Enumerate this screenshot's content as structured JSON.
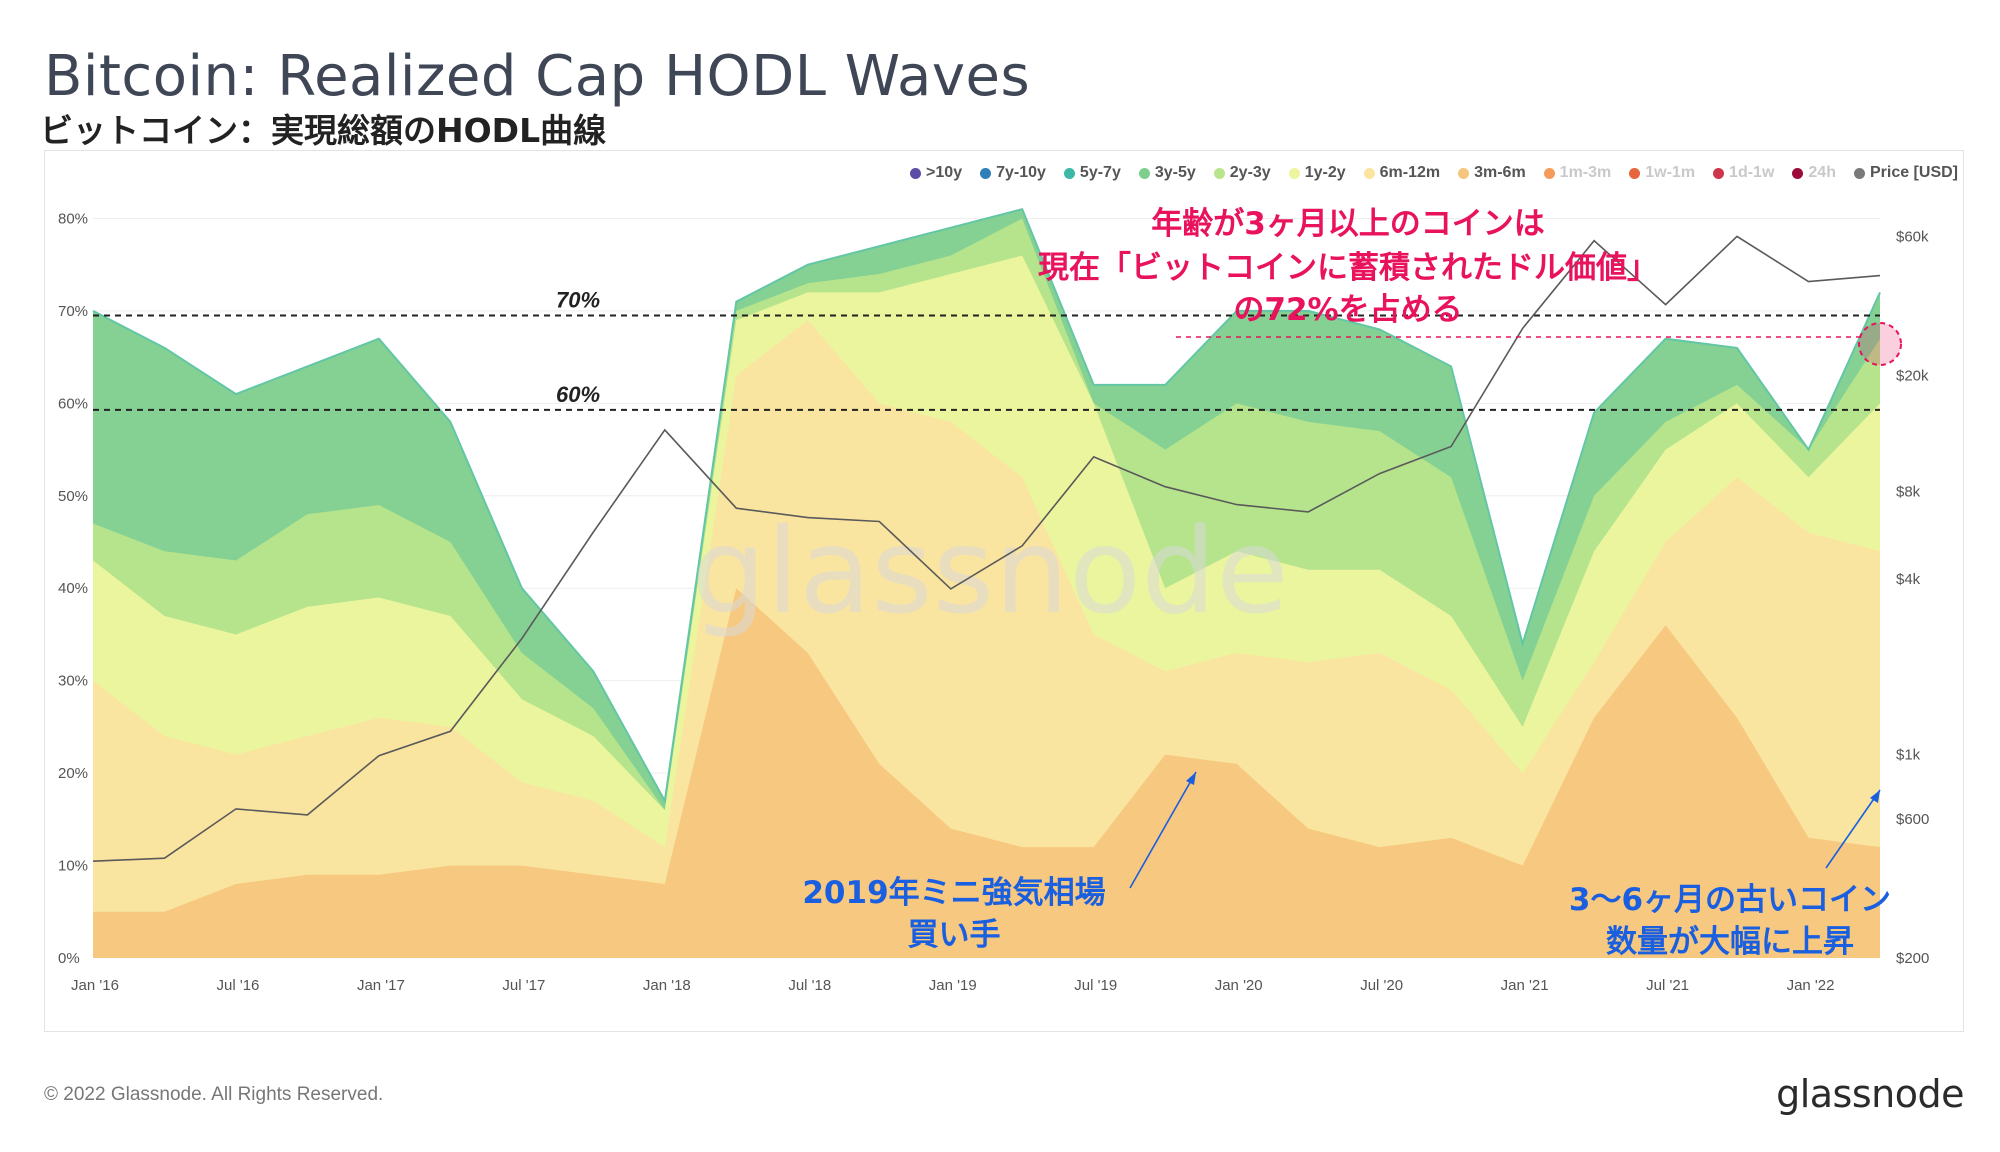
{
  "title": "Bitcoin: Realized Cap HODL Waves",
  "subtitle": "ビットコイン：実現総額のHODL曲線",
  "copyright": "© 2022 Glassnode. All Rights Reserved.",
  "brand": "glassnode",
  "watermark": "glassnode",
  "legend": [
    {
      "label": ">10y",
      "color": "#5b4da6",
      "muted": false
    },
    {
      "label": "7y-10y",
      "color": "#2f7fb8",
      "muted": false
    },
    {
      "label": "5y-7y",
      "color": "#3bb8a6",
      "muted": false
    },
    {
      "label": "3y-5y",
      "color": "#7ecf8e",
      "muted": false
    },
    {
      "label": "2y-3y",
      "color": "#b8e58c",
      "muted": false
    },
    {
      "label": "1y-2y",
      "color": "#eef59e",
      "muted": false
    },
    {
      "label": "6m-12m",
      "color": "#fbe4a0",
      "muted": false
    },
    {
      "label": "3m-6m",
      "color": "#f7c67d",
      "muted": false
    },
    {
      "label": "1m-3m",
      "color": "#f49c5c",
      "muted": true
    },
    {
      "label": "1w-1m",
      "color": "#e8643f",
      "muted": true
    },
    {
      "label": "1d-1w",
      "color": "#d0364b",
      "muted": true
    },
    {
      "label": "24h",
      "color": "#9c0a3a",
      "muted": true
    },
    {
      "label": "Price [USD]",
      "color": "#7a7a7a",
      "muted": false
    }
  ],
  "annotations": {
    "top_line1": "年齢が3ヶ月以上のコインは",
    "top_line2": "現在「ビットコインに蓄積されたドル価値」",
    "top_line3": "の72%を占める",
    "left_line1": "2019年ミニ強気相場",
    "left_line2": "買い手",
    "right_line1": "3〜6ヶ月の古いコイン",
    "right_line2": "数量が大幅に上昇",
    "ref70": "70%",
    "ref60": "60%",
    "highlight_color": "#e8125d",
    "callout_color": "#1a5fe0"
  },
  "chart_data": {
    "type": "area",
    "x": [
      "2016-01",
      "2016-04",
      "2016-07",
      "2016-10",
      "2017-01",
      "2017-04",
      "2017-07",
      "2017-10",
      "2018-01",
      "2018-04",
      "2018-07",
      "2018-10",
      "2019-01",
      "2019-04",
      "2019-07",
      "2019-10",
      "2020-01",
      "2020-04",
      "2020-07",
      "2020-10",
      "2021-01",
      "2021-04",
      "2021-07",
      "2021-10",
      "2022-01",
      "2022-03"
    ],
    "x_ticks": [
      "Jan '16",
      "Jul '16",
      "Jan '17",
      "Jul '17",
      "Jan '18",
      "Jul '18",
      "Jan '19",
      "Jul '19",
      "Jan '20",
      "Jul '20",
      "Jan '21",
      "Jul '21",
      "Jan '22"
    ],
    "y_left_ticks": [
      "0%",
      "10%",
      "20%",
      "30%",
      "40%",
      "50%",
      "60%",
      "70%",
      "80%"
    ],
    "y_right_ticks": [
      "$200",
      "$600",
      "$1k",
      "$4k",
      "$8k",
      "$20k",
      "$60k"
    ],
    "ylim": [
      0,
      82
    ],
    "reference_lines": [
      70,
      60
    ],
    "series": [
      {
        "name": "3m-6m",
        "values": [
          5,
          5,
          8,
          9,
          9,
          10,
          10,
          9,
          8,
          40,
          33,
          21,
          14,
          12,
          12,
          22,
          21,
          14,
          12,
          13,
          10,
          26,
          36,
          26,
          13,
          12
        ]
      },
      {
        "name": "6m-12m",
        "values": [
          30,
          24,
          22,
          24,
          26,
          25,
          19,
          17,
          12,
          63,
          69,
          60,
          58,
          52,
          35,
          31,
          33,
          32,
          33,
          29,
          20,
          32,
          45,
          52,
          46,
          44
        ]
      },
      {
        "name": "1y-2y",
        "values": [
          43,
          37,
          35,
          38,
          39,
          37,
          28,
          24,
          16,
          69,
          72,
          72,
          74,
          76,
          60,
          40,
          44,
          42,
          42,
          37,
          25,
          44,
          55,
          60,
          52,
          60
        ]
      },
      {
        "name": "2y-3y",
        "values": [
          47,
          44,
          43,
          48,
          49,
          45,
          33,
          27,
          16,
          70,
          73,
          74,
          76,
          80,
          60,
          55,
          60,
          58,
          57,
          52,
          30,
          50,
          58,
          62,
          55,
          67
        ]
      },
      {
        "name": "3y-5y",
        "values": [
          70,
          66,
          61,
          64,
          67,
          58,
          40,
          31,
          17,
          71,
          75,
          77,
          79,
          81,
          62,
          62,
          70,
          70,
          68,
          64,
          34,
          59,
          67,
          66,
          55,
          72
        ]
      }
    ],
    "price_usd": [
      430,
      440,
      650,
      620,
      990,
      1200,
      2500,
      5800,
      13000,
      7000,
      6500,
      6300,
      3700,
      5200,
      10500,
      8300,
      7200,
      6800,
      9200,
      11400,
      29000,
      58000,
      35000,
      60000,
      42000,
      44000
    ]
  }
}
